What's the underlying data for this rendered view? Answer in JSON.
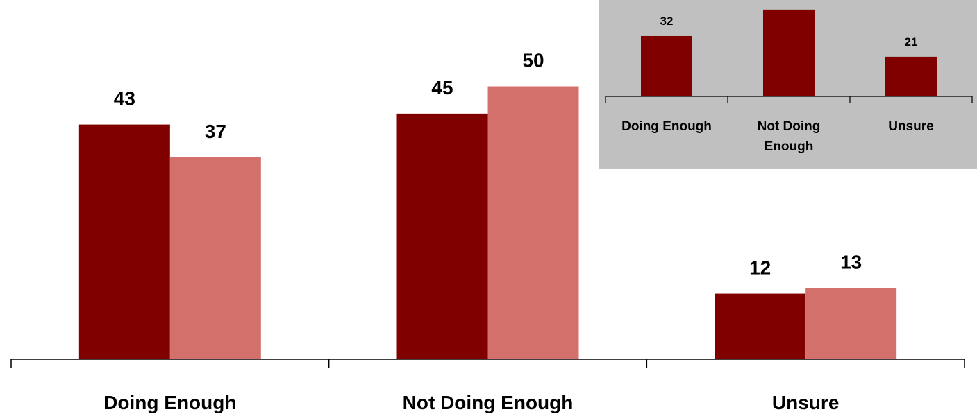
{
  "chart_data": [
    {
      "type": "bar",
      "categories": [
        "Doing Enough",
        "Not Doing Enough",
        "Unsure"
      ],
      "series": [
        {
          "values": [
            43,
            45,
            12
          ],
          "color": "#800000"
        },
        {
          "values": [
            37,
            50,
            13
          ],
          "color": "#D4706B"
        }
      ],
      "ylim": [
        0,
        50
      ],
      "grid": false,
      "show_values": true
    },
    {
      "type": "bar",
      "categories": [
        "Doing Enough",
        "Not Doing Enough",
        "Unsure"
      ],
      "category_lines": [
        [
          "Doing Enough"
        ],
        [
          "Not Doing",
          "Enough"
        ],
        [
          "Unsure"
        ]
      ],
      "series": [
        {
          "values": [
            32,
            46,
            21
          ],
          "color": "#800000"
        }
      ],
      "value_labels": [
        "32",
        "",
        "21"
      ],
      "background": "#C0C0C0",
      "position": "inset top-right"
    }
  ]
}
